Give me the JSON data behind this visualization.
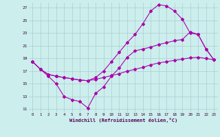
{
  "xlabel": "Windchill (Refroidissement éolien,°C)",
  "bg_color": "#cceeed",
  "grid_color": "#aacccc",
  "line_color": "#aa00aa",
  "xlim": [
    -0.5,
    23.5
  ],
  "ylim": [
    10.5,
    27.8
  ],
  "xticks": [
    0,
    1,
    2,
    3,
    4,
    5,
    6,
    7,
    8,
    9,
    10,
    11,
    12,
    13,
    14,
    15,
    16,
    17,
    18,
    19,
    20,
    21,
    22,
    23
  ],
  "yticks": [
    11,
    13,
    15,
    17,
    19,
    21,
    23,
    25,
    27
  ],
  "line_diag_x": [
    0,
    1,
    2,
    3,
    4,
    5,
    6,
    7,
    8,
    9,
    10,
    11,
    12,
    13,
    14,
    15,
    16,
    17,
    18,
    19,
    20,
    21,
    22,
    23
  ],
  "line_diag_y": [
    18.5,
    17.3,
    16.5,
    16.2,
    16.0,
    15.8,
    15.6,
    15.5,
    15.7,
    16.0,
    16.3,
    16.6,
    17.0,
    17.3,
    17.6,
    18.0,
    18.3,
    18.5,
    18.7,
    18.9,
    19.1,
    19.2,
    19.0,
    18.8
  ],
  "line_arch_x": [
    0,
    1,
    2,
    3,
    4,
    5,
    6,
    7,
    8,
    9,
    10,
    11,
    12,
    13,
    14,
    15,
    16,
    17,
    18,
    19,
    20,
    21,
    22,
    23
  ],
  "line_arch_y": [
    18.5,
    17.3,
    16.5,
    16.2,
    16.0,
    15.8,
    15.6,
    15.5,
    16.0,
    17.0,
    18.5,
    20.0,
    21.5,
    22.8,
    24.5,
    26.5,
    27.5,
    27.3,
    26.5,
    25.2,
    23.0,
    22.8,
    20.5,
    18.8
  ],
  "line_vdip_x": [
    0,
    1,
    2,
    3,
    4,
    5,
    6,
    7,
    8,
    9,
    10,
    11,
    12,
    13,
    14,
    15,
    16,
    17,
    18,
    19,
    20,
    21,
    22,
    23
  ],
  "line_vdip_y": [
    18.5,
    17.3,
    16.2,
    15.0,
    13.0,
    12.5,
    12.2,
    11.2,
    13.5,
    14.5,
    16.2,
    17.5,
    19.2,
    20.2,
    20.5,
    20.8,
    21.2,
    21.5,
    21.8,
    22.0,
    23.2,
    22.8,
    20.5,
    18.8
  ]
}
